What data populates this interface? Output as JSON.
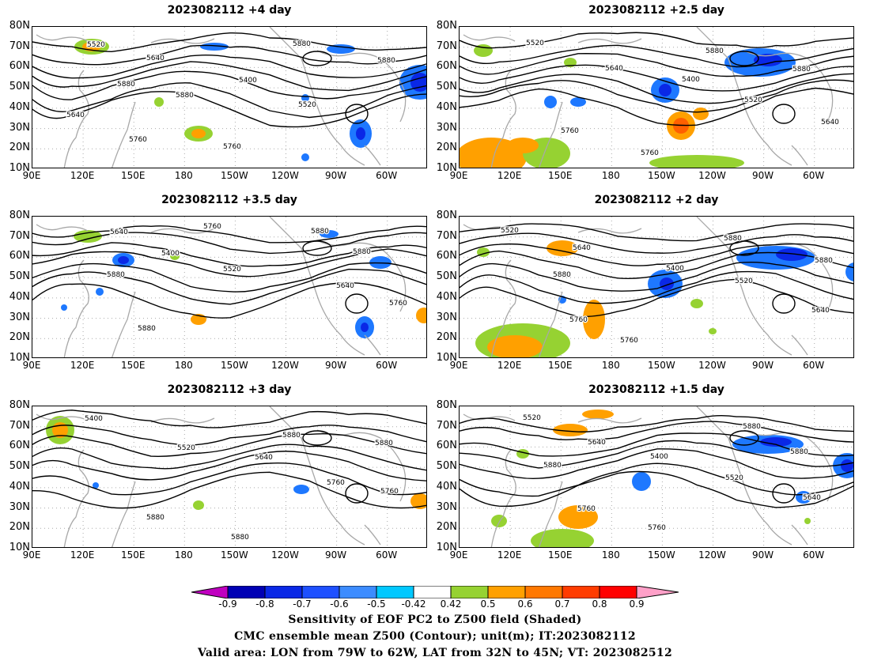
{
  "panels": [
    {
      "title": "2023082112 +4 day",
      "contours": [
        "5520",
        "5640",
        "5400",
        "5520",
        "5640",
        "5760",
        "5760",
        "5880",
        "5880",
        "5880",
        "5880"
      ]
    },
    {
      "title": "2023082112 +2.5 day",
      "contours": [
        "5520",
        "5640",
        "5400",
        "5520",
        "5640",
        "5760",
        "5760",
        "5880",
        "5880"
      ]
    },
    {
      "title": "2023082112 +3.5 day",
      "contours": [
        "5640",
        "5400",
        "5520",
        "5640",
        "5760",
        "5880",
        "5760",
        "5880",
        "5880",
        "5880"
      ]
    },
    {
      "title": "2023082112 +2 day",
      "contours": [
        "5520",
        "5640",
        "5400",
        "5520",
        "5640",
        "5760",
        "5760",
        "5880",
        "5880",
        "5880"
      ]
    },
    {
      "title": "2023082112 +3 day",
      "contours": [
        "5400",
        "5520",
        "5640",
        "5760",
        "5760",
        "5880",
        "5880",
        "5880",
        "5880"
      ]
    },
    {
      "title": "2023082112 +1.5 day",
      "contours": [
        "5520",
        "5640",
        "5400",
        "5520",
        "5640",
        "5760",
        "5760",
        "5880",
        "5880",
        "5880"
      ]
    }
  ],
  "axes": {
    "lat_labels": [
      "80N",
      "70N",
      "60N",
      "50N",
      "40N",
      "30N",
      "20N",
      "10N"
    ],
    "lon_labels": [
      "90E",
      "120E",
      "150E",
      "180",
      "150W",
      "120W",
      "90W",
      "60W"
    ]
  },
  "colorbar": {
    "labels": [
      "-0.9",
      "-0.8",
      "-0.7",
      "-0.6",
      "-0.5",
      "-0.42",
      "0.42",
      "0.5",
      "0.6",
      "0.7",
      "0.8",
      "0.9"
    ],
    "colors": [
      "#0000b4",
      "#0a28e6",
      "#1e50ff",
      "#3c8cff",
      "#00c8ff",
      "#ffffff",
      "#96d232",
      "#ffa000",
      "#ff7800",
      "#ff3c00",
      "#ff0000"
    ],
    "low_color": "#c000c0",
    "high_color": "#ffa0c8"
  },
  "captions": [
    "Sensitivity of EOF PC2 to Z500 field (Shaded)",
    "CMC ensemble mean Z500 (Contour); unit(m); IT:2023082112",
    "Valid area: LON from 79W to 62W, LAT from 32N to 45N; VT: 2023082512"
  ]
}
